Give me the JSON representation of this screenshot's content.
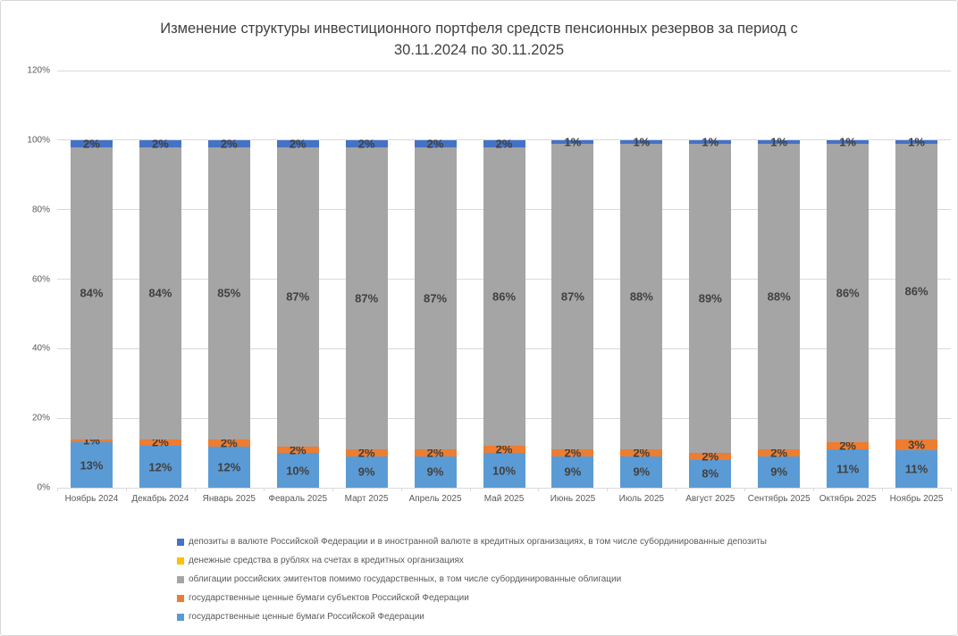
{
  "chart": {
    "title_line1": "Изменение структуры инвестиционного портфеля средств пенсионных резервов за период с",
    "title_line2": "30.11.2024 по 30.11.2025"
  },
  "chart_data": {
    "type": "bar",
    "subtype": "stacked-100",
    "title": "Изменение структуры инвестиционного портфеля средств пенсионных резервов за период с 30.11.2024 по 30.11.2025",
    "categories": [
      "Ноябрь 2024",
      "Декабрь 2024",
      "Январь 2025",
      "Февраль 2025",
      "Март 2025",
      "Апрель 2025",
      "Май 2025",
      "Июнь 2025",
      "Июль 2025",
      "Август 2025",
      "Сентябрь 2025",
      "Октябрь 2025",
      "Ноябрь 2025"
    ],
    "series": [
      {
        "name": "государственные ценные бумаги Российской Федерации",
        "color": "#5B9BD5",
        "show_labels": true,
        "values": [
          13,
          12,
          12,
          10,
          9,
          9,
          10,
          9,
          9,
          8,
          9,
          11,
          11
        ]
      },
      {
        "name": "государственные ценные бумаги субъектов Российской Федерации",
        "color": "#ED7D31",
        "show_labels": true,
        "values": [
          1,
          2,
          2,
          2,
          2,
          2,
          2,
          2,
          2,
          2,
          2,
          2,
          3
        ]
      },
      {
        "name": "облигации российских эмитентов помимо государственных, в том числе субординированные облигации",
        "color": "#A5A5A5",
        "show_labels": true,
        "values": [
          84,
          84,
          85,
          87,
          87,
          87,
          86,
          87,
          88,
          89,
          88,
          86,
          86
        ]
      },
      {
        "name": "денежные средства в рублях на счетах в кредитных организациях",
        "color": "#FFC000",
        "show_labels": false,
        "values": [
          0,
          0,
          0,
          0,
          0,
          0,
          0,
          0,
          0,
          0,
          0,
          0,
          0
        ]
      },
      {
        "name": "депозиты в валюте Российской Федерации и в иностранной валюте в кредитных организациях, в том числе субординированные депозиты",
        "color": "#4472C4",
        "show_labels": true,
        "values": [
          2,
          2,
          2,
          2,
          2,
          2,
          2,
          1,
          1,
          1,
          1,
          1,
          1
        ]
      }
    ],
    "legend": [
      {
        "label": "депозиты в валюте Российской Федерации и в иностранной валюте в кредитных организациях, в том числе субординированные депозиты",
        "color": "#4472C4"
      },
      {
        "label": "денежные средства в рублях на счетах в кредитных организациях",
        "color": "#FFC000"
      },
      {
        "label": "облигации российских эмитентов помимо государственных, в том числе субординированные облигации",
        "color": "#A5A5A5"
      },
      {
        "label": "государственные ценные бумаги субъектов Российской Федерации",
        "color": "#ED7D31"
      },
      {
        "label": "государственные ценные бумаги Российской Федерации",
        "color": "#5B9BD5"
      }
    ],
    "y_ticks": [
      "0%",
      "20%",
      "40%",
      "60%",
      "80%",
      "100%",
      "120%"
    ],
    "ylim": [
      0,
      120
    ],
    "grid": true,
    "legend_position": "bottom-left",
    "label_suffix": "%"
  },
  "colors": {
    "gridline": "#D9D9D9",
    "axis_text": "#595959",
    "bar_label_text": "#404040",
    "title_text": "#404040"
  }
}
